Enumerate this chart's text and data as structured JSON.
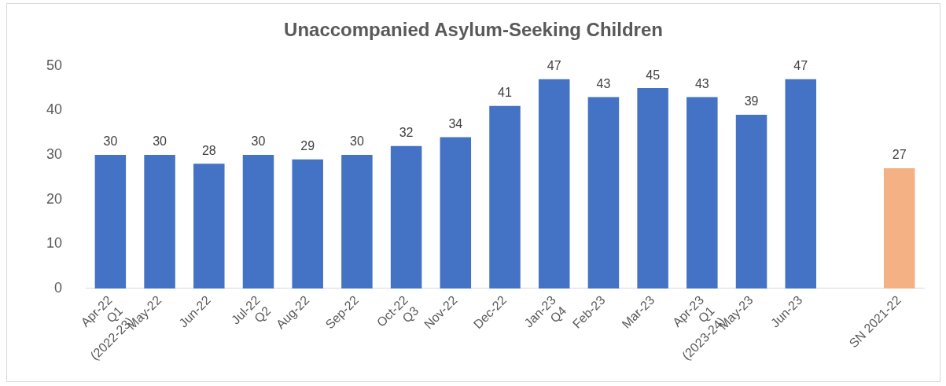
{
  "chart_data": {
    "type": "bar",
    "title": "Unaccompanied Asylum-Seeking Children",
    "categories": [
      "Apr-22\nQ1\n(2022-23)",
      "May-22",
      "Jun-22",
      "Jul-22\nQ2",
      "Aug-22",
      "Sep-22",
      "Oct-22\nQ3",
      "Nov-22",
      "Dec-22",
      "Jan-23\nQ4",
      "Feb-23",
      "Mar-23",
      "Apr-23\nQ1\n(2023-24)",
      "May-23",
      "Jun-23",
      null,
      "SN 2021-22"
    ],
    "values": [
      30,
      30,
      28,
      30,
      29,
      30,
      32,
      34,
      41,
      47,
      43,
      45,
      43,
      39,
      47,
      null,
      27
    ],
    "colors": [
      "#4472c4",
      "#4472c4",
      "#4472c4",
      "#4472c4",
      "#4472c4",
      "#4472c4",
      "#4472c4",
      "#4472c4",
      "#4472c4",
      "#4472c4",
      "#4472c4",
      "#4472c4",
      "#4472c4",
      "#4472c4",
      "#4472c4",
      "#4472c4",
      "#f4b183"
    ],
    "ylim": [
      0,
      50
    ],
    "yticks": [
      0,
      10,
      20,
      30,
      40,
      50
    ],
    "grid": false,
    "legend": false,
    "data_labels": true
  }
}
